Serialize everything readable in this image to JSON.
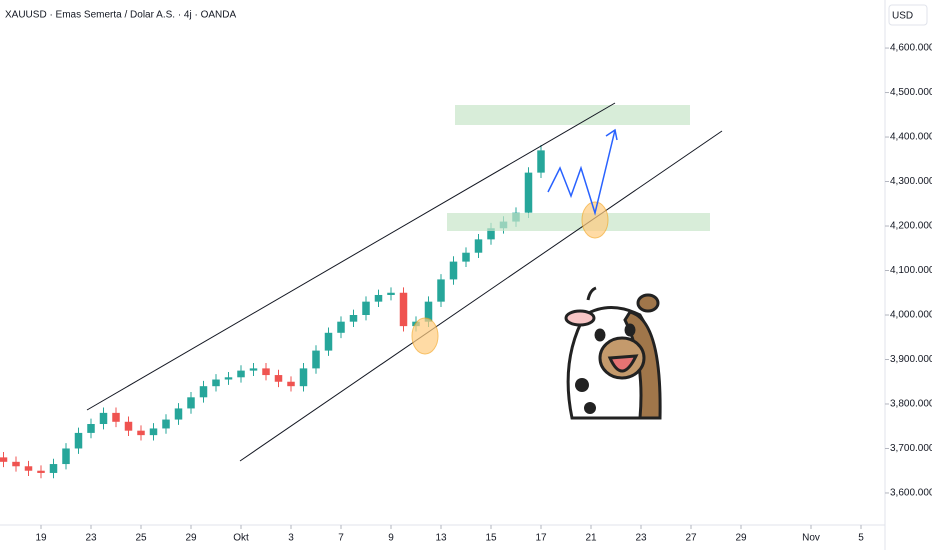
{
  "chart_data": {
    "type": "candlestick",
    "title": "XAUUSD · Emas Semerta / Dolar A.S. · 4j · OANDA",
    "currency": "USD",
    "up_color": "#26a69a",
    "down_color": "#ef5350",
    "x": [
      -1.5,
      -1,
      -0.5,
      0,
      0.5,
      1,
      1.5,
      2,
      2.5,
      3,
      3.5,
      4,
      4.5,
      5,
      5.5,
      6,
      6.5,
      7,
      7.5,
      8,
      8.5,
      9,
      9.5,
      10,
      10.5,
      11,
      11.5,
      12,
      12.5,
      13,
      13.5,
      14,
      14.5,
      15,
      15.5,
      16,
      16.5,
      17,
      17.5,
      18,
      18.5,
      19,
      19.5,
      20
    ],
    "open": [
      3680,
      3670,
      3660,
      3650,
      3645,
      3665,
      3700,
      3735,
      3755,
      3780,
      3760,
      3740,
      3730,
      3745,
      3765,
      3790,
      3815,
      3840,
      3855,
      3860,
      3875,
      3880,
      3865,
      3850,
      3840,
      3880,
      3920,
      3960,
      3985,
      4000,
      4030,
      4045,
      4050,
      3975,
      3985,
      4030,
      4080,
      4120,
      4140,
      4170,
      4195,
      4210,
      4230,
      4320
    ],
    "high": [
      3692,
      3682,
      3672,
      3662,
      3677,
      3712,
      3747,
      3767,
      3792,
      3792,
      3772,
      3752,
      3757,
      3777,
      3802,
      3827,
      3852,
      3867,
      3872,
      3887,
      3892,
      3892,
      3877,
      3862,
      3892,
      3932,
      3972,
      3997,
      4012,
      4042,
      4057,
      4062,
      4062,
      3997,
      4042,
      4092,
      4132,
      4152,
      4182,
      4207,
      4222,
      4242,
      4332,
      4382
    ],
    "low": [
      3658,
      3648,
      3638,
      3633,
      3633,
      3653,
      3688,
      3723,
      3743,
      3748,
      3728,
      3718,
      3718,
      3733,
      3753,
      3778,
      3803,
      3828,
      3843,
      3848,
      3863,
      3853,
      3838,
      3828,
      3828,
      3868,
      3908,
      3948,
      3973,
      3988,
      4018,
      4033,
      3963,
      3963,
      3973,
      4018,
      4068,
      4108,
      4128,
      4158,
      4183,
      4198,
      4218,
      4308
    ],
    "close": [
      3670,
      3660,
      3650,
      3645,
      3665,
      3700,
      3735,
      3755,
      3780,
      3760,
      3740,
      3730,
      3745,
      3765,
      3790,
      3815,
      3840,
      3855,
      3860,
      3875,
      3880,
      3865,
      3850,
      3840,
      3880,
      3920,
      3960,
      3985,
      4000,
      4030,
      4045,
      4050,
      3975,
      3985,
      4030,
      4080,
      4120,
      4140,
      4170,
      4195,
      4210,
      4230,
      4320,
      4370
    ],
    "xlim": [
      -1.64,
      33.76
    ],
    "xticks": [
      {
        "value": 0,
        "label": "19"
      },
      {
        "value": 2,
        "label": "23"
      },
      {
        "value": 4,
        "label": "25"
      },
      {
        "value": 6,
        "label": "29"
      },
      {
        "value": 8,
        "label": "Okt"
      },
      {
        "value": 10,
        "label": "3"
      },
      {
        "value": 12,
        "label": "7"
      },
      {
        "value": 14,
        "label": "9"
      },
      {
        "value": 16,
        "label": "13"
      },
      {
        "value": 18,
        "label": "15"
      },
      {
        "value": 20,
        "label": "17"
      },
      {
        "value": 22,
        "label": "21"
      },
      {
        "value": 24,
        "label": "23"
      },
      {
        "value": 26,
        "label": "27"
      },
      {
        "value": 28,
        "label": "29"
      },
      {
        "value": 30.8,
        "label": "Nov"
      },
      {
        "value": 32.8,
        "label": "5"
      }
    ],
    "ylim": [
      3528,
      4708
    ],
    "yticks": [
      {
        "value": 3600,
        "label": "3,600.000"
      },
      {
        "value": 3700,
        "label": "3,700.000"
      },
      {
        "value": 3800,
        "label": "3,800.000"
      },
      {
        "value": 3900,
        "label": "3,900.000"
      },
      {
        "value": 4000,
        "label": "4,000.000"
      },
      {
        "value": 4100,
        "label": "4,100.000"
      },
      {
        "value": 4200,
        "label": "4,200.000"
      },
      {
        "value": 4300,
        "label": "4,300.000"
      },
      {
        "value": 4400,
        "label": "4,400.000"
      },
      {
        "value": 4500,
        "label": "4,500.000"
      },
      {
        "value": 4600,
        "label": "4,600.000"
      }
    ]
  }
}
